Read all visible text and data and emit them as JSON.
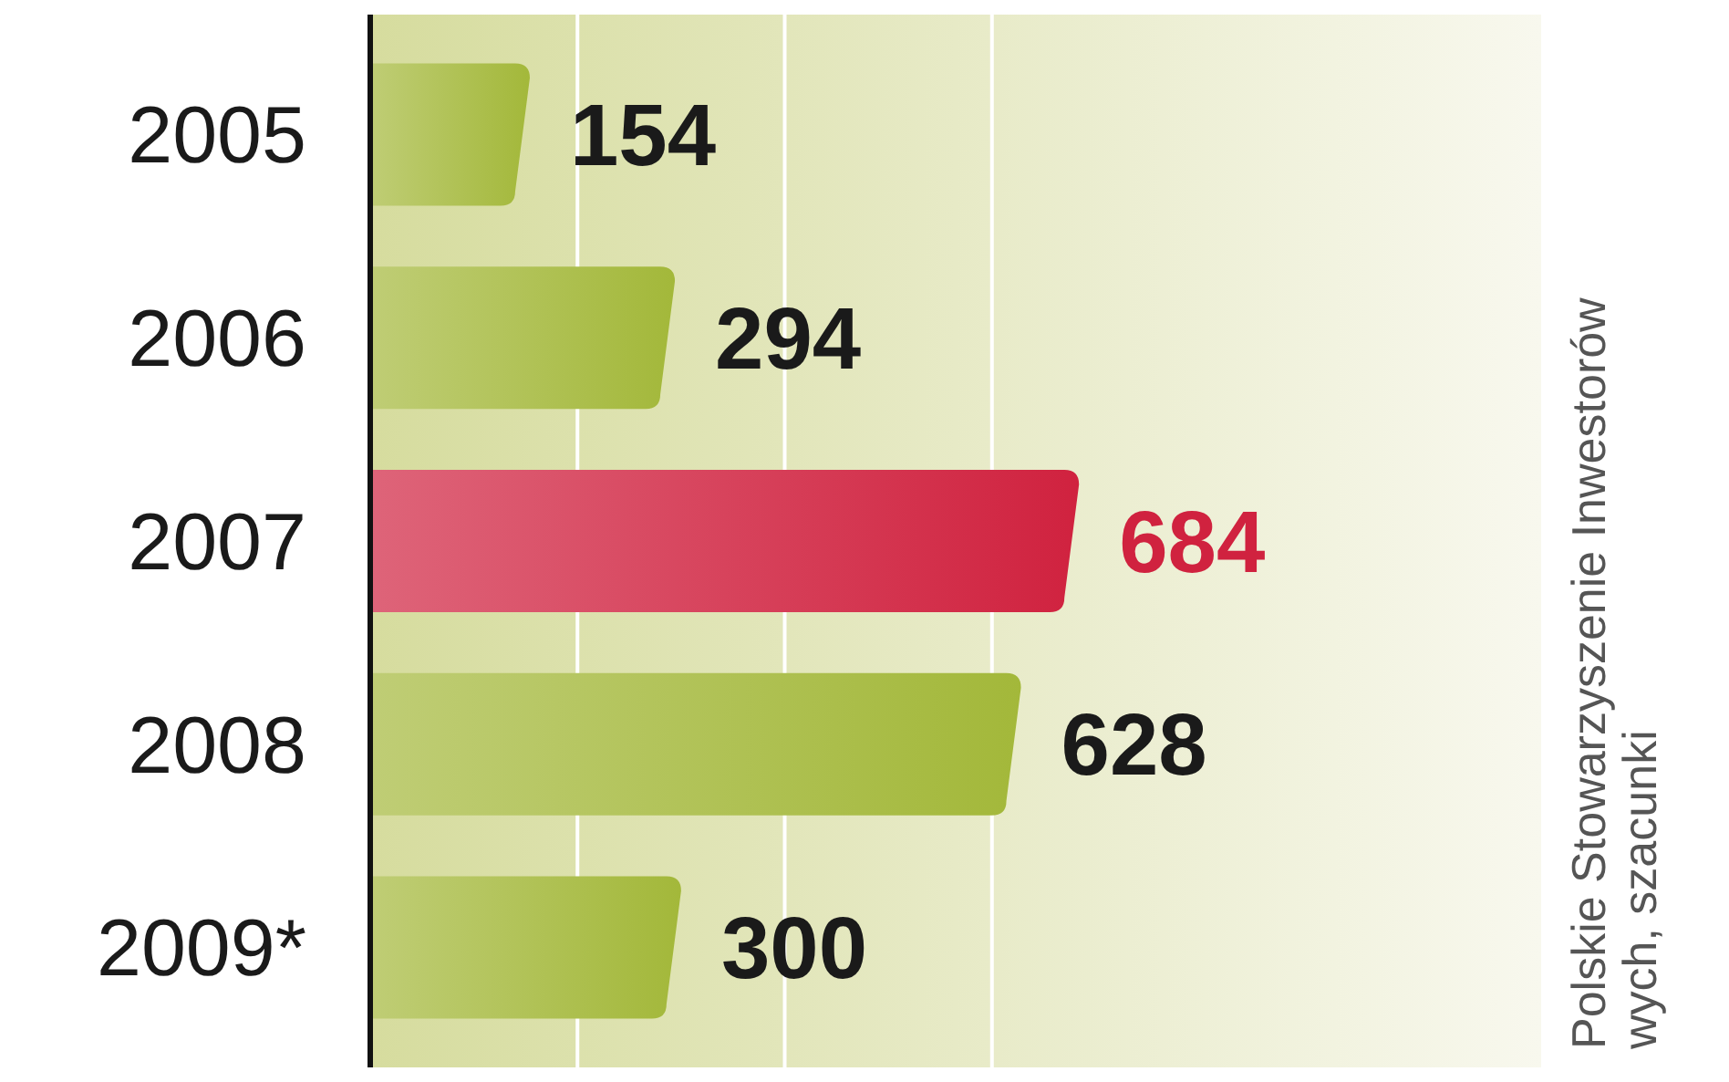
{
  "chart_data": {
    "type": "bar",
    "orientation": "horizontal",
    "categories": [
      "2005",
      "2006",
      "2007",
      "2008",
      "2009*"
    ],
    "values": [
      154,
      294,
      684,
      628,
      300
    ],
    "colors": [
      "#a3b83a",
      "#a3b83a",
      "#d0223f",
      "#a3b83a",
      "#a3b83a"
    ],
    "xlim": [
      0,
      1130
    ],
    "xticks": [
      {
        "value": 200,
        "label": null
      },
      {
        "value": 400,
        "label": null
      },
      {
        "value": 600,
        "label": null
      }
    ],
    "grid": "x",
    "data_labels": true,
    "tick_labels": "y",
    "annotations": [
      "Polskie Stowarzyszenie Inwestorów",
      "wych, szacunki"
    ]
  }
}
